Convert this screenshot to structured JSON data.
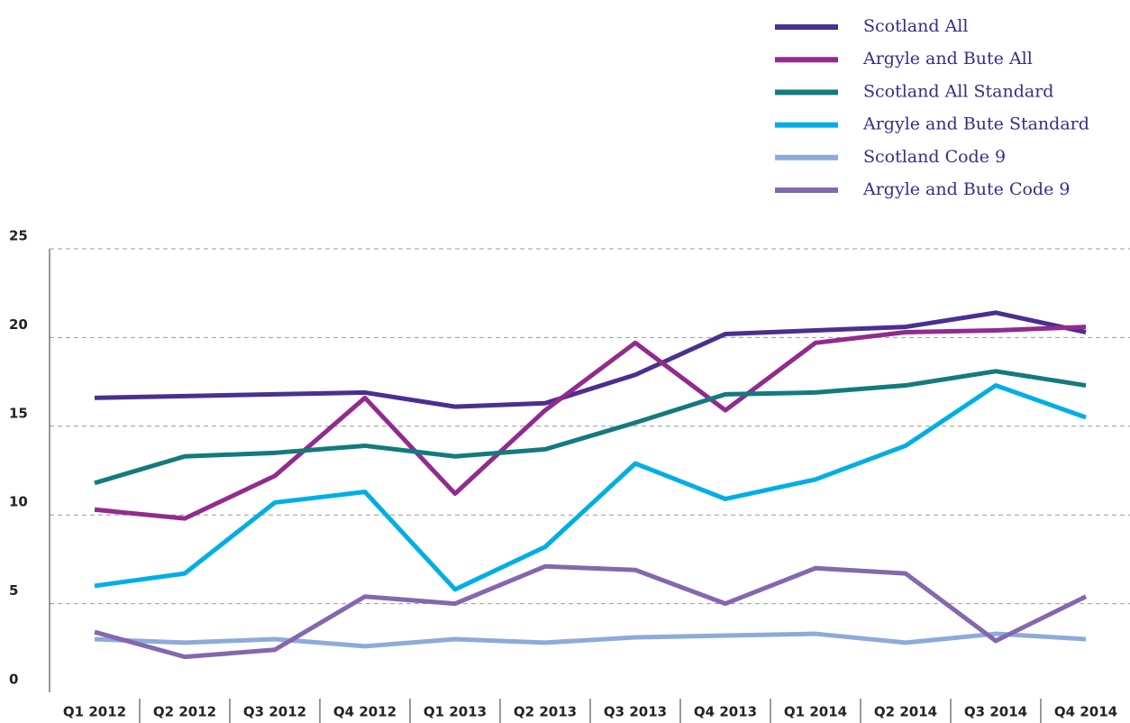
{
  "chart_data": {
    "type": "line",
    "categories": [
      "Q1 2012",
      "Q2 2012",
      "Q3 2012",
      "Q4 2012",
      "Q1 2013",
      "Q2 2013",
      "Q3 2013",
      "Q4 2013",
      "Q1 2014",
      "Q2 2014",
      "Q3 2014",
      "Q4 2014"
    ],
    "series": [
      {
        "name": "Scotland All",
        "color": "#4b2f90",
        "values": [
          16.6,
          16.7,
          16.8,
          16.9,
          16.1,
          16.3,
          17.9,
          20.2,
          20.4,
          20.6,
          21.4,
          20.3
        ]
      },
      {
        "name": "Argyle and Bute All",
        "color": "#922b8e",
        "values": [
          10.3,
          9.8,
          12.2,
          16.6,
          11.2,
          15.9,
          19.7,
          15.9,
          19.7,
          20.3,
          20.4,
          20.6
        ]
      },
      {
        "name": "Scotland All Standard",
        "color": "#137a7e",
        "values": [
          11.8,
          13.3,
          13.5,
          13.9,
          13.3,
          13.7,
          15.2,
          16.8,
          16.9,
          17.3,
          18.1,
          17.3
        ]
      },
      {
        "name": "Argyle and Bute Standard",
        "color": "#00aee6",
        "values": [
          6.0,
          6.7,
          10.7,
          11.3,
          5.8,
          8.2,
          12.9,
          10.9,
          12.0,
          13.9,
          17.3,
          15.5
        ]
      },
      {
        "name": "Scotland Code 9",
        "color": "#8eaadb",
        "values": [
          3.0,
          2.8,
          3.0,
          2.6,
          3.0,
          2.8,
          3.1,
          3.2,
          3.3,
          2.8,
          3.3,
          3.0
        ]
      },
      {
        "name": "Argyle and Bute Code 9",
        "color": "#8467ae",
        "values": [
          3.4,
          2.0,
          2.4,
          5.4,
          5.0,
          7.1,
          6.9,
          5.0,
          7.0,
          6.7,
          2.9,
          5.4
        ]
      }
    ],
    "ylim": [
      0,
      25
    ],
    "yticks": [
      0,
      5,
      10,
      15,
      20,
      25
    ],
    "grid": true,
    "legend": "top-right"
  }
}
